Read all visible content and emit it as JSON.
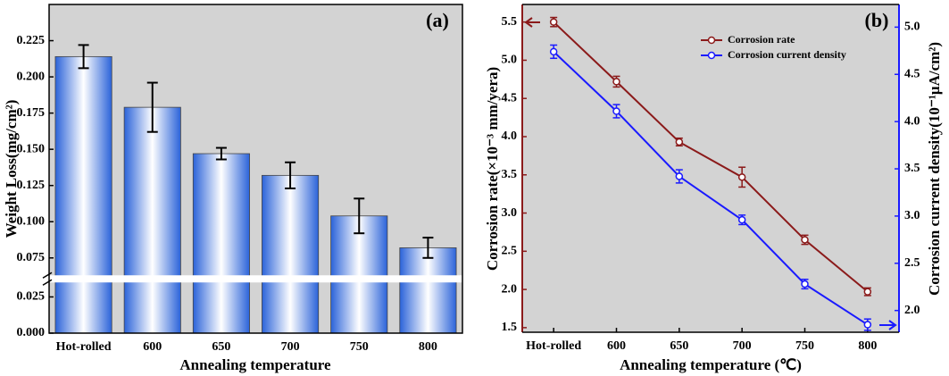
{
  "chart_data": [
    {
      "type": "bar",
      "annotation": "(a)",
      "x_label": "Annealing temperature",
      "y_label": "Weight Loss(mg/cm²)",
      "categories": [
        "Hot-rolled",
        "600",
        "650",
        "700",
        "750",
        "800"
      ],
      "values": [
        0.214,
        0.179,
        0.147,
        0.132,
        0.104,
        0.082
      ],
      "errors": [
        0.008,
        0.017,
        0.004,
        0.009,
        0.012,
        0.007
      ],
      "color": "#2b63d9",
      "ylim": [
        0,
        0.25
      ],
      "axis_break": [
        0.035,
        0.063
      ],
      "yticks": [
        {
          "value": 0,
          "label": "0.000"
        },
        {
          "value": 0.025,
          "label": "0.025"
        },
        {
          "value": 0.075,
          "label": "0.075"
        },
        {
          "value": 0.1,
          "label": "0.100"
        },
        {
          "value": 0.125,
          "label": "0.125"
        },
        {
          "value": 0.15,
          "label": "0.150"
        },
        {
          "value": 0.175,
          "label": "0.175"
        },
        {
          "value": 0.2,
          "label": "0.200"
        },
        {
          "value": 0.225,
          "label": "0.225"
        }
      ]
    },
    {
      "type": "line",
      "annotation": "(b)",
      "x_label": "Annealing temperature (℃)",
      "y_label": "Corrosion rate(×10⁻³ mm/yera)",
      "y2_label": "Corrosion current density(10⁻¹μA/cm²)",
      "categories": [
        "Hot-rolled",
        "600",
        "650",
        "700",
        "750",
        "800"
      ],
      "series": [
        {
          "name": "Corrosion rate",
          "color": "#8b1a1a",
          "values": [
            5.5,
            4.72,
            3.93,
            3.47,
            2.65,
            1.97
          ],
          "errors": [
            0.06,
            0.07,
            0.05,
            0.13,
            0.06,
            0.05
          ]
        },
        {
          "name": "Corrosion current density",
          "color": "#1a1aff",
          "axis": "y2",
          "values": [
            4.74,
            4.11,
            3.42,
            2.96,
            2.28,
            1.85
          ],
          "errors": [
            0.07,
            0.07,
            0.07,
            0.05,
            0.05,
            0.06
          ]
        }
      ],
      "ylim": [
        1.44,
        5.73
      ],
      "yticks": [
        1.5,
        {
          "value": 2,
          "label": "2.0"
        },
        2.5,
        {
          "value": 3,
          "label": "3.0"
        },
        3.5,
        {
          "value": 4,
          "label": "4.0"
        },
        4.5,
        {
          "value": 5,
          "label": "5.0"
        },
        5.5
      ],
      "y2lim": [
        1.77,
        5.24
      ],
      "y2ticks": [
        {
          "value": 2,
          "label": "2.0"
        },
        2.5,
        {
          "value": 3,
          "label": "3.0"
        },
        3.5,
        {
          "value": 4,
          "label": "4.0"
        },
        4.5,
        {
          "value": 5,
          "label": "5.0"
        }
      ],
      "legend": "upper right"
    }
  ]
}
